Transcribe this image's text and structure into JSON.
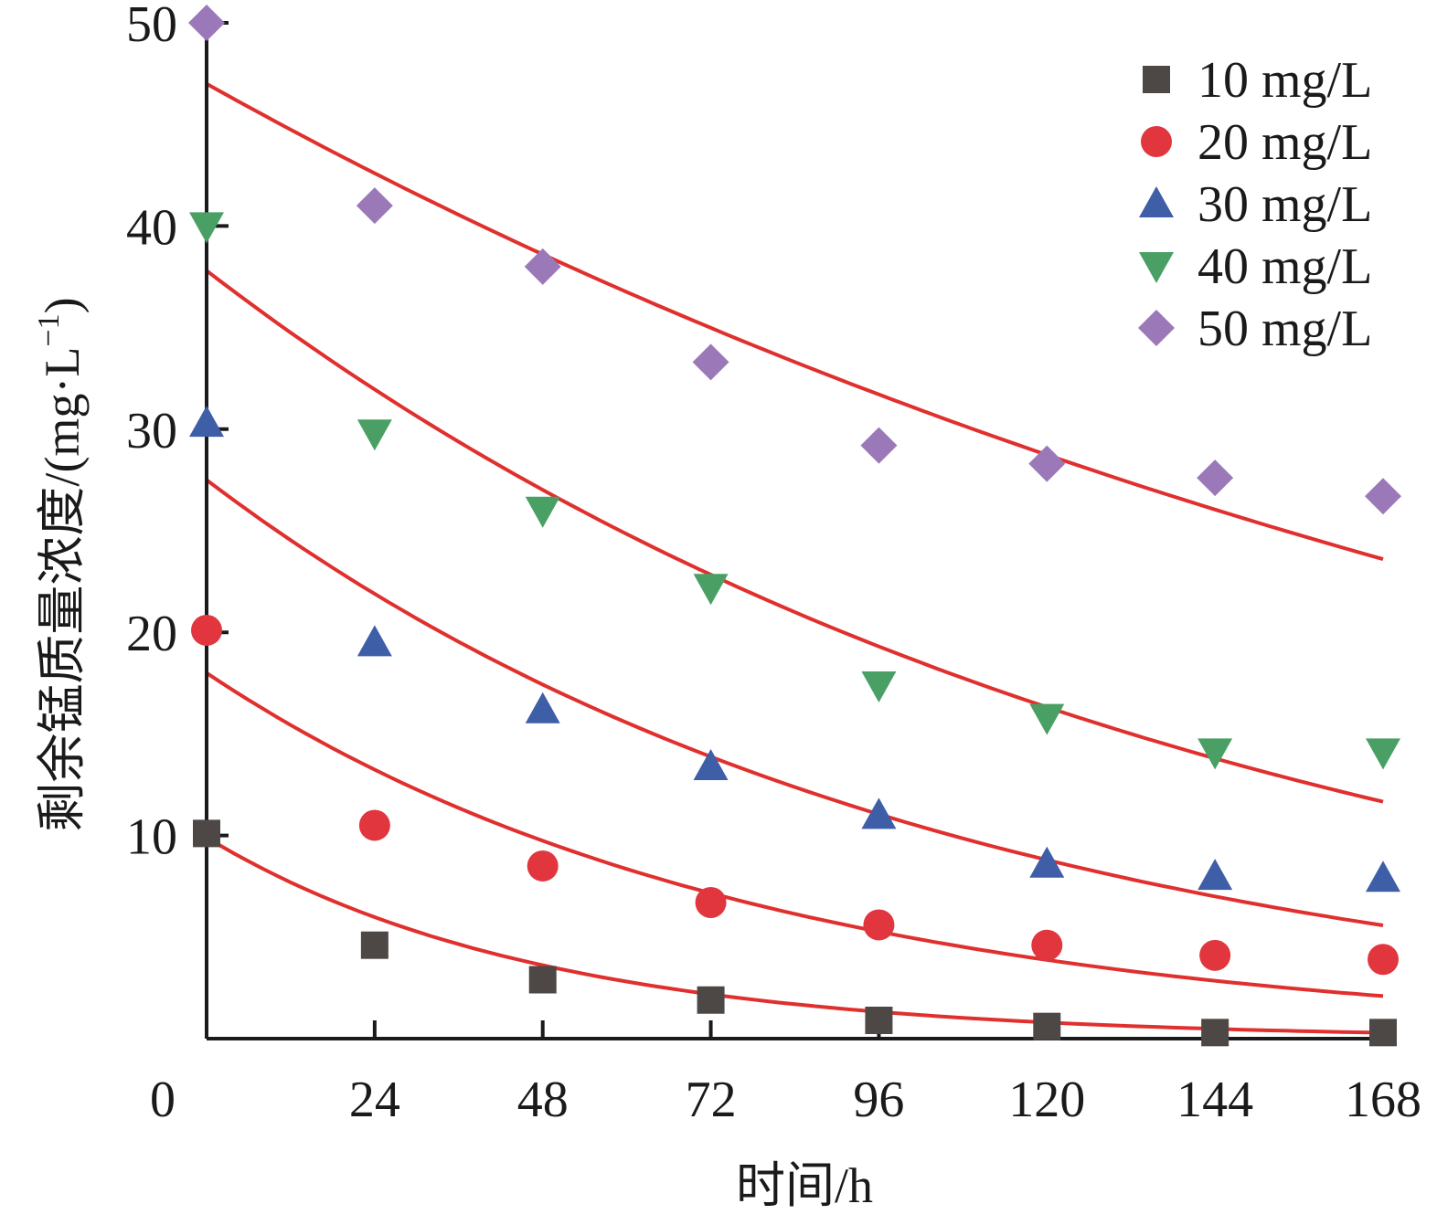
{
  "chart_data": {
    "type": "scatter",
    "title": "",
    "xlabel": "时间/h",
    "ylabel": "剩余锰质量浓度/(mg·L",
    "ylabel_superscript": "−1",
    "ylabel_close": ")",
    "x_origin_label": "0",
    "x_ticks": [
      24,
      48,
      72,
      96,
      120,
      144,
      168
    ],
    "x_tick_labels": [
      "24",
      "48",
      "72",
      "96",
      "120",
      "144",
      "168"
    ],
    "y_ticks": [
      10,
      20,
      30,
      40,
      50
    ],
    "y_tick_labels": [
      "10",
      "20",
      "30",
      "40",
      "50"
    ],
    "xlim": [
      0,
      168
    ],
    "ylim": [
      0,
      50
    ],
    "grid": false,
    "legend_position": "top-right",
    "x": [
      0,
      24,
      48,
      72,
      96,
      120,
      144,
      168
    ],
    "series": [
      {
        "name": "10 mg/L",
        "marker": "square",
        "color": "#4d4846",
        "values": [
          10.1,
          4.6,
          2.9,
          1.9,
          0.9,
          0.6,
          0.3,
          0.3
        ],
        "fit": {
          "c0": 9.9,
          "k": 0.021,
          "color": "#e0302e"
        }
      },
      {
        "name": "20 mg/L",
        "marker": "circle",
        "color": "#e2363f",
        "values": [
          20.1,
          10.5,
          8.5,
          6.7,
          5.6,
          4.6,
          4.1,
          3.9
        ],
        "fit": {
          "c0": 18.0,
          "k": 0.0128,
          "color": "#e0302e"
        }
      },
      {
        "name": "30 mg/L",
        "marker": "triangle-up",
        "color": "#3e5ea8",
        "values": [
          30.3,
          19.5,
          16.2,
          13.4,
          11.0,
          8.6,
          8.0,
          7.9
        ],
        "fit": {
          "c0": 27.5,
          "k": 0.0095,
          "color": "#e0302e"
        }
      },
      {
        "name": "40 mg/L",
        "marker": "triangle-down",
        "color": "#4aa064",
        "values": [
          40.0,
          29.8,
          26.0,
          22.2,
          17.4,
          15.8,
          14.1,
          14.1
        ],
        "fit": {
          "c0": 37.8,
          "k": 0.007,
          "color": "#e0302e"
        }
      },
      {
        "name": "50 mg/L",
        "marker": "diamond",
        "color": "#9b79b9",
        "values": [
          50.0,
          41.0,
          38.0,
          33.3,
          29.2,
          28.3,
          27.6,
          26.7
        ],
        "fit": {
          "c0": 47.0,
          "k": 0.0041,
          "color": "#e0302e"
        }
      }
    ]
  }
}
